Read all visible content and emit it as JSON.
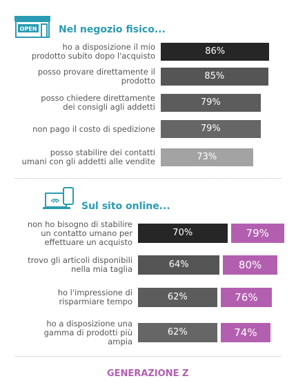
{
  "chart_data": [
    {
      "type": "bar",
      "orientation": "horizontal",
      "title": "Nel negozio fisico...",
      "categories": [
        "ho a disposizione il mio\nprodotto subito dopo l'acquisto",
        "posso provare direttamente il\nprodotto",
        "posso chiedere direttamente\ndei consigli agli addetti",
        "non pago il costo di spedizione",
        "posso stabilire dei contatti\numani con gli addetti alle vendite"
      ],
      "values": [
        86,
        85,
        79,
        79,
        73
      ],
      "value_labels": [
        "86%",
        "85%",
        "79%",
        "79%",
        "73%"
      ],
      "colors": [
        "#262626",
        "#555555",
        "#5c5c5c",
        "#666666",
        "#a3a3a3"
      ]
    },
    {
      "type": "bar",
      "orientation": "horizontal",
      "title": "Sul sito online...",
      "categories": [
        "non ho bisogno di stabilire\nun contatto umano per\neffettuare un acquisto",
        "trovo gli articoli disponibili\nnella mia taglia",
        "ho l'impressione di\nrisparmiare tempo",
        "ho a disposizione una\ngamma di prodotti più\nampia"
      ],
      "series": [
        {
          "colors": [
            "#262626",
            "#555555",
            "#5c5c5c",
            "#666666"
          ],
          "values": [
            70,
            64,
            62,
            62
          ],
          "value_labels": [
            "70%",
            "64%",
            "62%",
            "62%"
          ]
        },
        {
          "name": "GENERAZIONE Z",
          "color": "#b35fb0",
          "values": [
            79,
            80,
            76,
            74
          ],
          "value_labels": [
            "79%",
            "80%",
            "76%",
            "74%"
          ]
        }
      ]
    }
  ]
}
